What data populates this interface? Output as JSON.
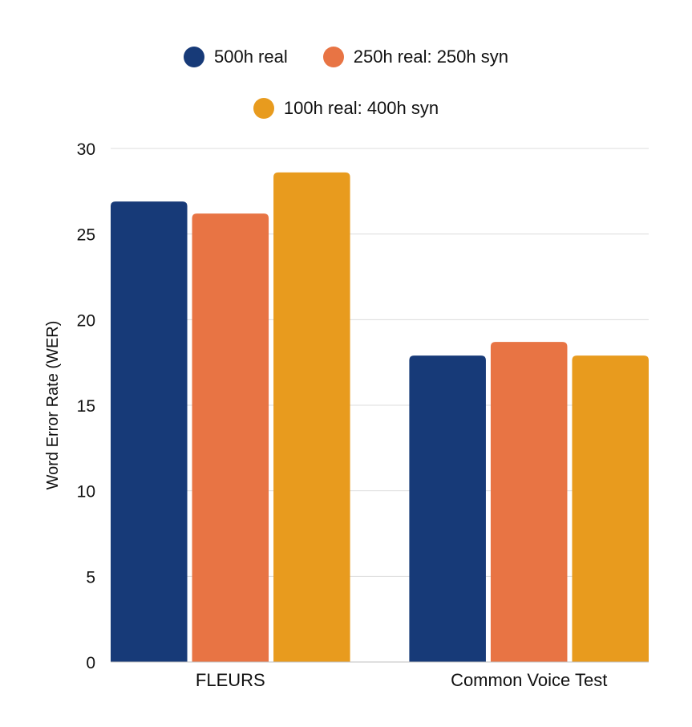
{
  "chart_data": {
    "type": "bar",
    "title": "",
    "xlabel": "",
    "ylabel": "Word Error Rate (WER)",
    "ylim": [
      0,
      30
    ],
    "yticks": [
      0,
      5,
      10,
      15,
      20,
      25,
      30
    ],
    "grid": true,
    "legend_position": "top-center",
    "categories": [
      "FLEURS",
      "Common Voice Test"
    ],
    "series": [
      {
        "name": "500h real",
        "color": "#173a78",
        "values": [
          26.9,
          17.9
        ]
      },
      {
        "name": "250h real: 250h syn",
        "color": "#e87444",
        "values": [
          26.2,
          18.7
        ]
      },
      {
        "name": "100h real: 400h syn",
        "color": "#e89b1e",
        "values": [
          28.6,
          17.9
        ]
      }
    ]
  }
}
